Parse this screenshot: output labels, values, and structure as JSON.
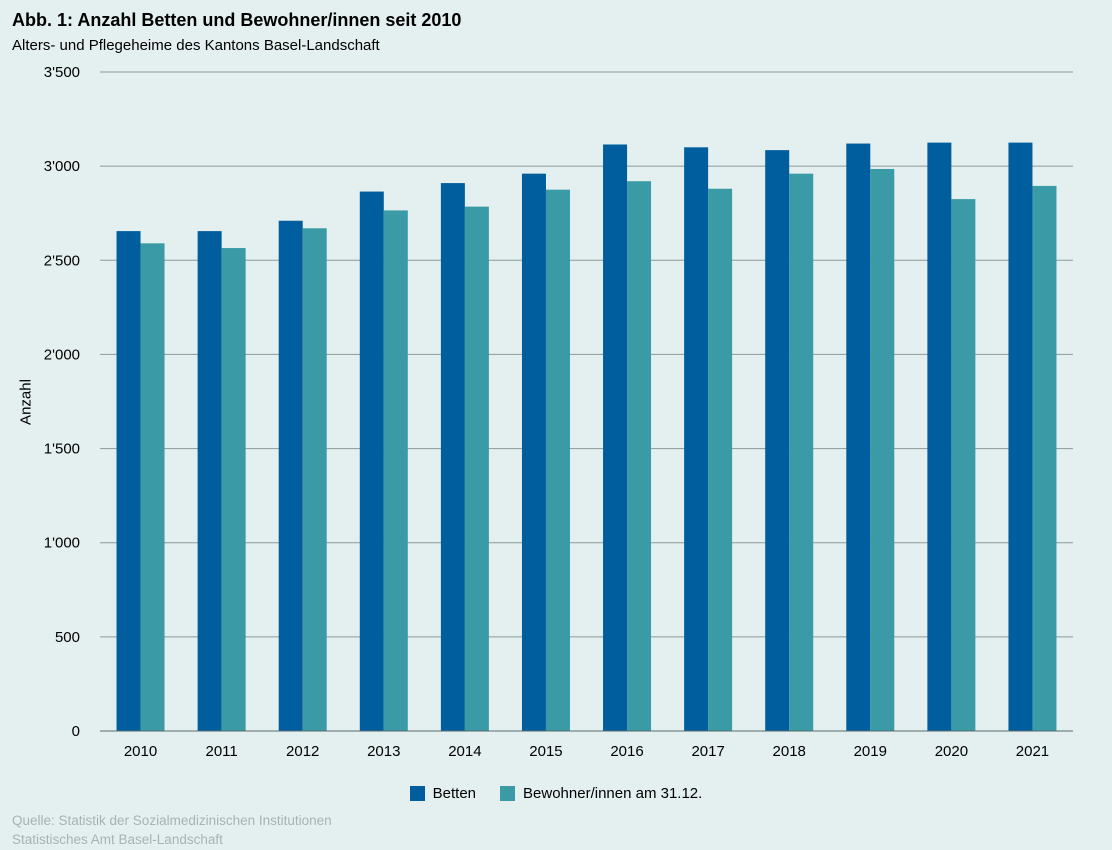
{
  "header": {
    "title": "Abb. 1: Anzahl Betten und Bewohner/innen seit 2010",
    "subtitle": "Alters- und Pflegeheime des Kantons Basel-Landschaft"
  },
  "footer": {
    "source_line1": "Quelle: Statistik der Sozialmedizinischen Institutionen",
    "source_line2": "Statistisches Amt Basel-Landschaft"
  },
  "chart_data": {
    "type": "bar",
    "title": "Abb. 1: Anzahl Betten und Bewohner/innen seit 2010",
    "subtitle": "Alters- und Pflegeheime des Kantons Basel-Landschaft",
    "xlabel": "",
    "ylabel": "Anzahl",
    "ylim": [
      0,
      3500
    ],
    "yticks": [
      0,
      500,
      1000,
      1500,
      2000,
      2500,
      3000,
      3500
    ],
    "ytick_labels": [
      "0",
      "500",
      "1'000",
      "1'500",
      "2'000",
      "2'500",
      "3'000",
      "3'500"
    ],
    "grid": true,
    "legend_position": "bottom",
    "categories": [
      "2010",
      "2011",
      "2012",
      "2013",
      "2014",
      "2015",
      "2016",
      "2017",
      "2018",
      "2019",
      "2020",
      "2021"
    ],
    "series": [
      {
        "name": "Betten",
        "color": "#005e9e",
        "values": [
          2655,
          2655,
          2710,
          2865,
          2910,
          2960,
          3115,
          3100,
          3085,
          3120,
          3125,
          3125
        ]
      },
      {
        "name": "Bewohner/innen am 31.12.",
        "color": "#3a9aa6",
        "values": [
          2590,
          2565,
          2670,
          2765,
          2785,
          2875,
          2920,
          2880,
          2960,
          2985,
          2825,
          2895
        ]
      }
    ]
  }
}
